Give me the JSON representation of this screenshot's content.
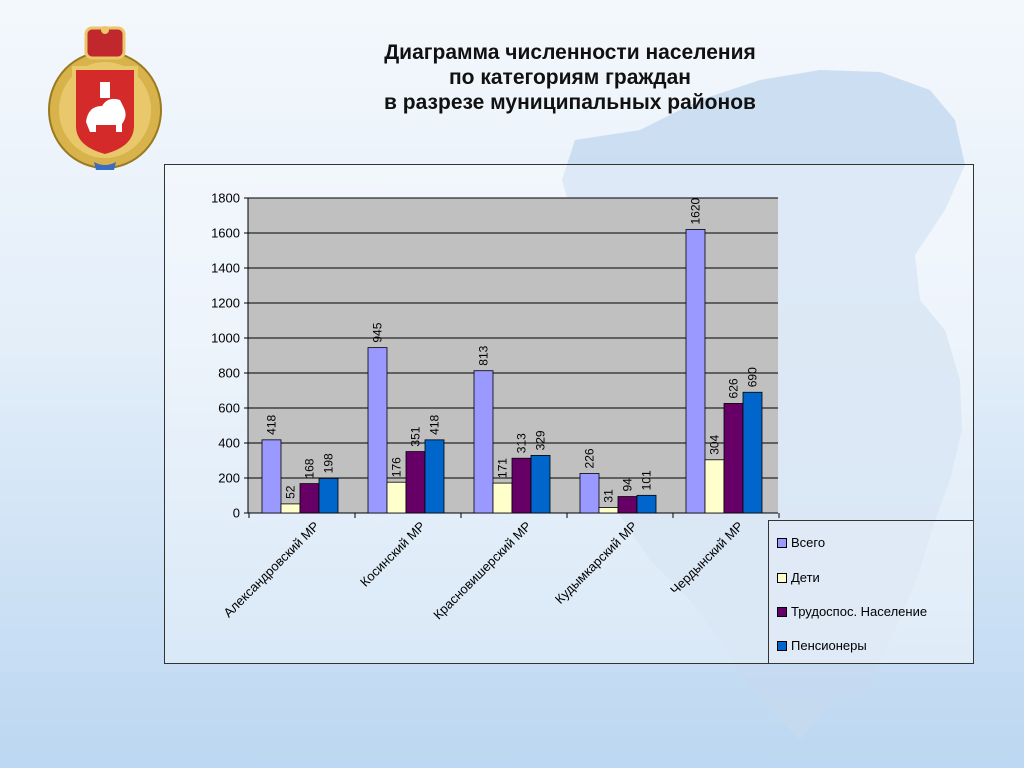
{
  "page": {
    "title_lines": [
      "Диаграмма численности населения",
      "по категориям граждан",
      "в разрезе муниципальных районов"
    ]
  },
  "colors": {
    "map": "#c5d9ee",
    "plot_bg": "#c0c0c0",
    "series": [
      "#9999ff",
      "#ffffcc",
      "#660066",
      "#0066cc"
    ]
  },
  "chart_data": {
    "type": "bar",
    "categories": [
      "Александровский МР",
      "Косинский МР",
      "Красновишерский МР",
      "Кудымкарский МР",
      "Чердынский МР"
    ],
    "series": [
      {
        "name": "Всего",
        "values": [
          418,
          945,
          813,
          226,
          1620
        ]
      },
      {
        "name": "Дети",
        "values": [
          52,
          176,
          171,
          31,
          304
        ]
      },
      {
        "name": "Трудоспос. Население",
        "values": [
          168,
          351,
          313,
          94,
          626
        ]
      },
      {
        "name": "Пенсионеры",
        "values": [
          198,
          418,
          329,
          101,
          690
        ]
      }
    ],
    "ylim": [
      0,
      1800
    ],
    "yticks": [
      0,
      200,
      400,
      600,
      800,
      1000,
      1200,
      1400,
      1600,
      1800
    ],
    "grid": true,
    "legend": "bottom-right",
    "data_labels": true
  }
}
